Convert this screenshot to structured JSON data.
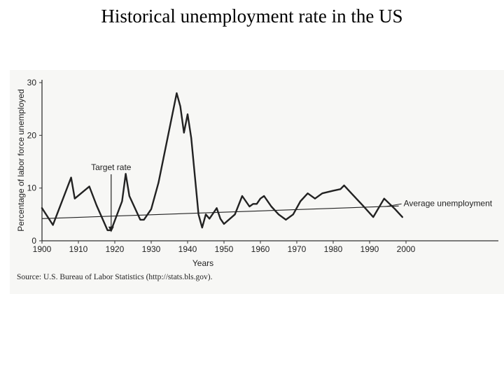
{
  "slide": {
    "title": "Historical unemployment rate in the US",
    "source": "Source: U.S. Bureau of Labor Statistics (http://stats.bls.gov)."
  },
  "chart_data": {
    "type": "line",
    "title": "",
    "xlabel": "Years",
    "ylabel": "Percentage of labor force unemployed",
    "xlim": [
      1900,
      2000
    ],
    "ylim": [
      0,
      30
    ],
    "x_ticks": [
      1900,
      1910,
      1920,
      1930,
      1940,
      1950,
      1960,
      1970,
      1980,
      1990,
      2000
    ],
    "y_ticks": [
      0,
      10,
      20,
      30
    ],
    "grid": false,
    "series": [
      {
        "name": "",
        "color": "#222222",
        "points": [
          [
            1900,
            6.2
          ],
          [
            1903,
            3.0
          ],
          [
            1908,
            12.0
          ],
          [
            1909,
            8.0
          ],
          [
            1913,
            10.3
          ],
          [
            1915,
            6.7
          ],
          [
            1918,
            2.0
          ],
          [
            1919,
            2.0
          ],
          [
            1922,
            7.5
          ],
          [
            1923,
            12.7
          ],
          [
            1924,
            8.5
          ],
          [
            1927,
            4.0
          ],
          [
            1928,
            4.0
          ],
          [
            1930,
            6.0
          ],
          [
            1932,
            11.0
          ],
          [
            1937,
            28.0
          ],
          [
            1938,
            25.5
          ],
          [
            1939,
            20.5
          ],
          [
            1940,
            24.0
          ],
          [
            1941,
            19.5
          ],
          [
            1943,
            5.0
          ],
          [
            1944,
            2.5
          ],
          [
            1945,
            5.0
          ],
          [
            1946,
            4.2
          ],
          [
            1948,
            6.2
          ],
          [
            1949,
            4.2
          ],
          [
            1950,
            3.2
          ],
          [
            1953,
            5.0
          ],
          [
            1955,
            8.5
          ],
          [
            1957,
            6.5
          ],
          [
            1958,
            7.0
          ],
          [
            1959,
            7.0
          ],
          [
            1960,
            8.0
          ],
          [
            1961,
            8.5
          ],
          [
            1963,
            6.5
          ],
          [
            1965,
            5.0
          ],
          [
            1967,
            4.0
          ],
          [
            1969,
            5.0
          ],
          [
            1971,
            7.5
          ],
          [
            1973,
            9.0
          ],
          [
            1975,
            8.0
          ],
          [
            1977,
            9.0
          ],
          [
            1980,
            9.5
          ],
          [
            1982,
            9.8
          ],
          [
            1983,
            10.5
          ],
          [
            1985,
            9.0
          ],
          [
            1988,
            6.8
          ],
          [
            1991,
            4.5
          ],
          [
            1994,
            8.0
          ],
          [
            1997,
            6.0
          ],
          [
            1999,
            4.5
          ]
        ]
      }
    ],
    "reference_line": {
      "label": "Average unemployment",
      "points": [
        [
          1900,
          4.2
        ],
        [
          1998,
          6.6
        ]
      ],
      "color": "#222222"
    },
    "annotations": [
      {
        "text": "Target rate",
        "arrow_to": [
          1919,
          1.5
        ]
      }
    ]
  }
}
